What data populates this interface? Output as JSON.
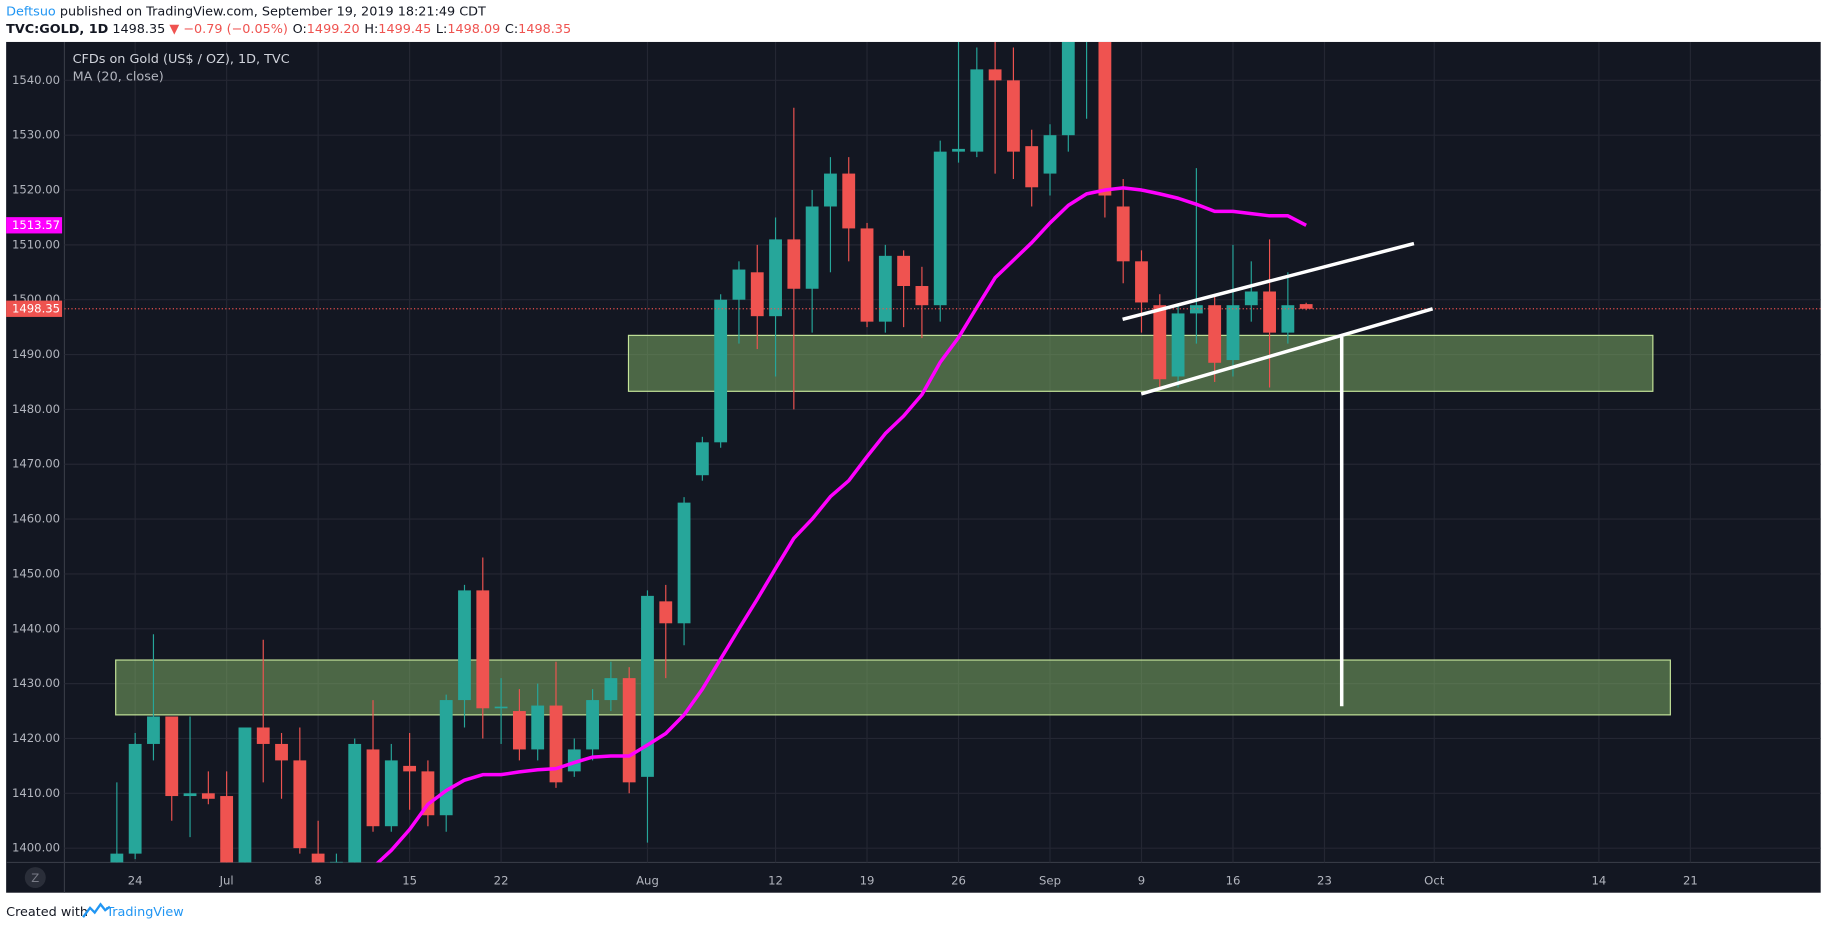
{
  "header": {
    "author": "Deftsuo",
    "published": "published on TradingView.com, September 19, 2019 18:21:49 CDT",
    "symbol": "TVC:GOLD, 1D",
    "price": "1498.35",
    "arrow": "▼",
    "change": "−0.79 (−0.05%)",
    "ohlc": [
      {
        "key": "O:",
        "value": "1499.20"
      },
      {
        "key": "H:",
        "value": "1499.45"
      },
      {
        "key": "L:",
        "value": "1498.09"
      },
      {
        "key": "C:",
        "value": "1498.35"
      }
    ]
  },
  "footer": {
    "created": "Created with",
    "brand": "TradingView"
  },
  "scale_button": "Z",
  "chart_data": {
    "type": "candlestick",
    "title": "CFDs on Gold (US$ / OZ), 1D, TVC",
    "categories": [
      null,
      "24",
      null,
      null,
      null,
      null,
      "Jul",
      null,
      null,
      null,
      null,
      "8",
      null,
      null,
      null,
      null,
      "15",
      null,
      null,
      null,
      null,
      "22",
      null,
      null,
      null,
      null,
      null,
      null,
      null,
      "Aug",
      null,
      null,
      null,
      null,
      null,
      null,
      "12",
      null,
      null,
      null,
      null,
      "19",
      null,
      null,
      null,
      null,
      "26",
      null,
      null,
      null,
      null,
      "Sep",
      null,
      null,
      null,
      null,
      "9",
      null,
      null,
      null,
      null,
      "16",
      null,
      null,
      null,
      null,
      "23",
      null,
      null,
      null,
      null,
      null,
      "Oct",
      null,
      null,
      null,
      null,
      null,
      null,
      null,
      null,
      "14",
      null,
      null,
      null,
      null,
      "21"
    ],
    "up_color": "#26a69a",
    "down_color": "#ef5350",
    "open": [
      1397,
      1399,
      1419,
      1424,
      1409.5,
      1410,
      1409.5,
      1396,
      1422,
      1419,
      1416,
      1399,
      1397,
      1396,
      1418,
      1404,
      1415,
      1414,
      1406,
      1427,
      1447,
      1425.5,
      1425,
      1418,
      1426,
      1414,
      1418,
      1427,
      1431,
      1413,
      1445,
      1441,
      1468,
      1474,
      1500,
      1505,
      1497,
      1511,
      1502,
      1517,
      1523,
      1513,
      1496,
      1508,
      1502.5,
      1499,
      1527,
      1527,
      1542,
      1540,
      1528,
      1523,
      1530,
      1547,
      1547,
      1517,
      1507,
      1499,
      1486,
      1497.5,
      1499,
      1489,
      1499,
      1501.5,
      1494,
      1499.2,
      null,
      null,
      null,
      null,
      null,
      null,
      null,
      null,
      null,
      null,
      null,
      null,
      null,
      null,
      null,
      null,
      null,
      null,
      null,
      null,
      null
    ],
    "high": [
      1412,
      1421,
      1439,
      1424,
      1424,
      1414,
      1414,
      1422,
      1438,
      1421,
      1422,
      1405,
      1399,
      1420,
      1427,
      1419,
      1421,
      1416,
      1428,
      1448,
      1453,
      1431,
      1429,
      1430,
      1434,
      1420,
      1429,
      1434,
      1433,
      1447,
      1448,
      1464,
      1475,
      1501,
      1507,
      1510,
      1515,
      1535,
      1520,
      1526,
      1526,
      1514,
      1510,
      1509,
      1506,
      1529,
      1556,
      1546,
      1548,
      1546,
      1531,
      1532,
      1548,
      1557,
      1552,
      1522,
      1509,
      1501,
      1499,
      1524,
      1501,
      1510,
      1507,
      1511,
      1505,
      1499.45,
      null,
      null,
      null,
      null,
      null,
      null,
      null,
      null,
      null,
      null,
      null,
      null,
      null,
      null,
      null,
      null,
      null,
      null,
      null,
      null,
      null
    ],
    "low": [
      1396,
      1398,
      1416,
      1405,
      1402,
      1408,
      1394,
      1395,
      1412,
      1409,
      1399,
      1395,
      1395,
      1395,
      1403,
      1403,
      1407,
      1404,
      1403,
      1422,
      1420,
      1419,
      1416,
      1416,
      1411,
      1413,
      1416,
      1425,
      1410,
      1401,
      1431,
      1437,
      1467,
      1473,
      1492,
      1491,
      1486,
      1480,
      1494,
      1505,
      1507,
      1495,
      1494,
      1495,
      1493,
      1496,
      1525,
      1526,
      1523,
      1522,
      1517,
      1519,
      1527,
      1533,
      1515,
      1503,
      1494,
      1484,
      1484,
      1492,
      1485,
      1486,
      1496,
      1484,
      1492,
      1498.09,
      null,
      null,
      null,
      null,
      null,
      null,
      null,
      null,
      null,
      null,
      null,
      null,
      null,
      null,
      null,
      null,
      null,
      null,
      null,
      null,
      null
    ],
    "close": [
      1399,
      1419,
      1424,
      1409.5,
      1410,
      1409,
      1396,
      1422,
      1419,
      1416,
      1400,
      1396,
      1397.5,
      1419,
      1404,
      1416,
      1414,
      1406,
      1427,
      1447,
      1425.5,
      1425.8,
      1418,
      1426,
      1412,
      1418,
      1427,
      1431,
      1412,
      1446,
      1441,
      1463,
      1474,
      1500,
      1505.5,
      1497,
      1511,
      1502,
      1517,
      1523,
      1513,
      1496,
      1508,
      1502.5,
      1499,
      1527,
      1527.5,
      1542,
      1540,
      1527,
      1520.5,
      1530,
      1547,
      1548,
      1519,
      1507,
      1499.5,
      1485.5,
      1497.5,
      1499,
      1488.5,
      1499,
      1501.5,
      1494,
      1499,
      1498.35,
      null,
      null,
      null,
      null,
      null,
      null,
      null,
      null,
      null,
      null,
      null,
      null,
      null,
      null,
      null,
      null,
      null,
      null,
      null,
      null,
      null
    ],
    "overlays": [
      {
        "type": "line",
        "name": "MA (20, close)",
        "color": "#ff00ff",
        "values": [
          null,
          null,
          null,
          null,
          null,
          null,
          null,
          null,
          null,
          null,
          null,
          null,
          null,
          null,
          1396.5,
          1399.6,
          1403.4,
          1408,
          1410.5,
          1412.4,
          1413.4,
          1413.4,
          1413.9,
          1414.3,
          1414.5,
          1415.6,
          1416.6,
          1416.8,
          1416.8,
          1418.8,
          1420.9,
          1424.3,
          1429,
          1434.5,
          1440,
          1445.4,
          1451,
          1456.5,
          1460,
          1464.1,
          1467,
          1471.4,
          1475.6,
          1478.8,
          1482.7,
          1488.6,
          1493.1,
          1498.6,
          1504,
          1507.2,
          1510.4,
          1514,
          1517.2,
          1519.3,
          1520,
          1520.4,
          1520,
          1519.3,
          1518.5,
          1517.4,
          1516.1,
          1516.1,
          1515.7,
          1515.3,
          1515.3,
          1513.57,
          null,
          null,
          null,
          null,
          null,
          null,
          null,
          null,
          null,
          null,
          null,
          null,
          null,
          null,
          null,
          null,
          null,
          null,
          null,
          null,
          null
        ]
      }
    ],
    "zones": [
      {
        "low": 1483.3,
        "high": 1493.5
      },
      {
        "low": 1424.3,
        "high": 1434.3
      }
    ],
    "ylim": [
      1397.4,
      1547.0
    ],
    "yticks": [
      {
        "value": 1400,
        "label": "1400.00"
      },
      {
        "value": 1410,
        "label": "1410.00"
      },
      {
        "value": 1420,
        "label": "1420.00"
      },
      {
        "value": 1430,
        "label": "1430.00"
      },
      {
        "value": 1440,
        "label": "1440.00"
      },
      {
        "value": 1450,
        "label": "1450.00"
      },
      {
        "value": 1460,
        "label": "1460.00"
      },
      {
        "value": 1470,
        "label": "1470.00"
      },
      {
        "value": 1480,
        "label": "1480.00"
      },
      {
        "value": 1490,
        "label": "1490.00"
      },
      {
        "value": 1500,
        "label": "1500.00"
      },
      {
        "value": 1510,
        "label": "1510.00"
      },
      {
        "value": 1520,
        "label": "1520.00"
      },
      {
        "value": 1530,
        "label": "1530.00"
      },
      {
        "value": 1540,
        "label": "1540.00"
      }
    ],
    "grid": true
  }
}
